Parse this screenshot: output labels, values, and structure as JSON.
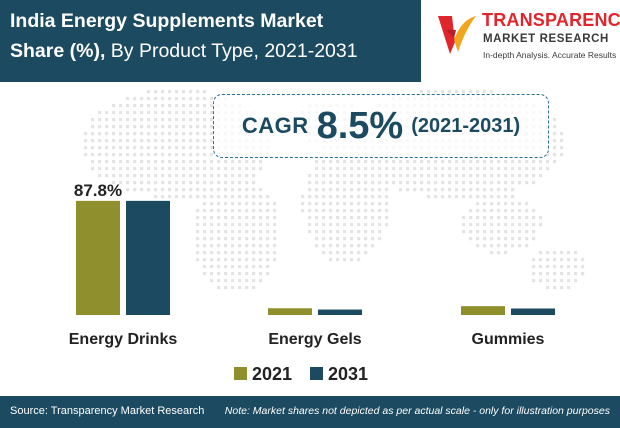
{
  "header": {
    "title_line1": "India Energy Supplements Market",
    "title_bold2": "Share (%),",
    "title_rest2": " By Product Type, 2021-2031"
  },
  "logo": {
    "name": "TRANSPARENCY",
    "sub": "MARKET RESEARCH",
    "tagline": "In-depth Analysis. Accurate Results",
    "colors": {
      "red": "#e0262d",
      "orange": "#f2a51e",
      "dark": "#3a3a3a"
    }
  },
  "cagr": {
    "label": "CAGR",
    "value": "8.5%",
    "period": "(2021-2031)"
  },
  "chart_data": {
    "type": "bar",
    "categories": [
      "Energy Drinks",
      "Energy Gels",
      "Gummies"
    ],
    "series": [
      {
        "name": "2021",
        "values": [
          87.8,
          5.2,
          6.8
        ],
        "color": "#8f8f2e"
      },
      {
        "name": "2031",
        "values": [
          87.8,
          4.2,
          5.0
        ],
        "color": "#1b4a61"
      }
    ],
    "data_labels": [
      {
        "category": "Energy Drinks",
        "series": "2021",
        "text": "87.8%"
      }
    ],
    "ylim": [
      0,
      100
    ],
    "grid": false,
    "legend_position": "bottom-center",
    "background": "dotted world map"
  },
  "footer": {
    "source": "Source: Transparency Market Research",
    "note": "Note: Market shares not depicted as per actual scale - only for illustration purposes"
  }
}
